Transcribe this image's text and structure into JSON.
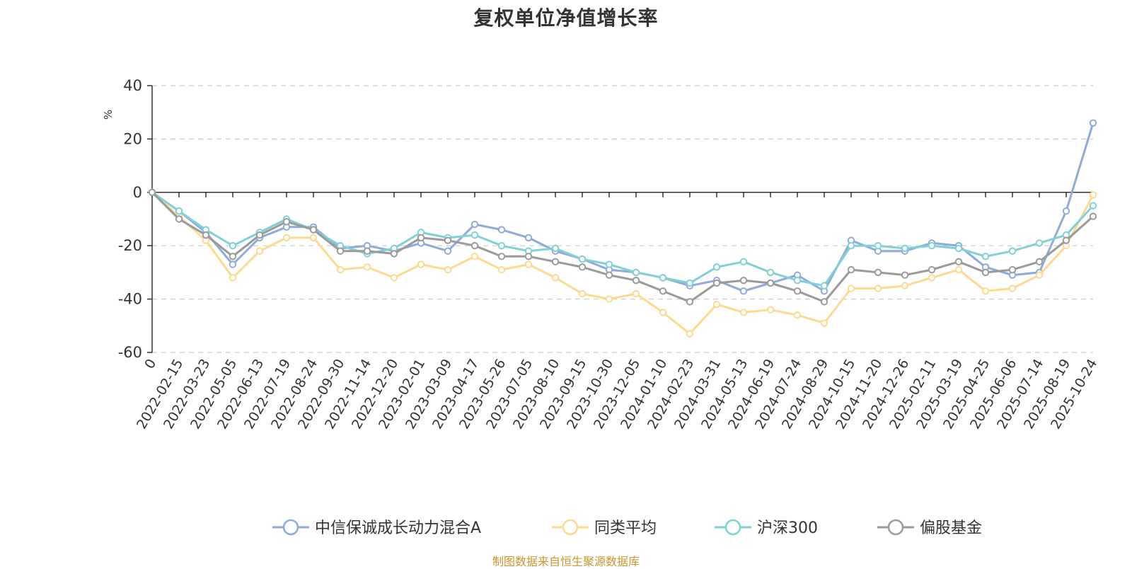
{
  "chart_data": {
    "type": "line",
    "title": "复权单位净值增长率",
    "ylabel": "%",
    "xlabel": "",
    "ylim": [
      -60,
      40
    ],
    "y_ticks": [
      40,
      20,
      0,
      -20,
      -40,
      -60
    ],
    "grid": true,
    "legend_position": "bottom-center",
    "categories": [
      "0",
      "2022-02-15",
      "2022-03-23",
      "2022-05-05",
      "2022-06-13",
      "2022-07-19",
      "2022-08-24",
      "2022-09-30",
      "2022-11-14",
      "2022-12-20",
      "2023-02-01",
      "2023-03-09",
      "2023-04-17",
      "2023-05-26",
      "2023-07-05",
      "2023-08-10",
      "2023-09-15",
      "2023-10-30",
      "2023-12-05",
      "2024-01-10",
      "2024-02-23",
      "2024-03-31",
      "2024-05-13",
      "2024-06-19",
      "2024-07-24",
      "2024-08-29",
      "2024-10-15",
      "2024-11-20",
      "2024-12-26",
      "2025-02-11",
      "2025-03-19",
      "2025-04-25",
      "2025-06-06",
      "2025-07-14",
      "2025-08-19",
      "2025-10-24"
    ],
    "series": [
      {
        "name": "中信保诚成长动力混合A",
        "color": "#8eaadb",
        "values": [
          0,
          -7,
          -15,
          -27,
          -17,
          -13,
          -13,
          -21,
          -20,
          -22,
          -19,
          -22,
          -12,
          -14,
          -17,
          -22,
          -25,
          -29,
          -30,
          -32,
          -35,
          -33,
          -37,
          -34,
          -31,
          -37,
          -18,
          -22,
          -22,
          -19,
          -20,
          -28,
          -31,
          -30,
          -7,
          26
        ]
      },
      {
        "name": "同类平均",
        "color": "#ffd98e",
        "values": [
          0,
          -9,
          -18,
          -32,
          -22,
          -17,
          -17,
          -29,
          -28,
          -32,
          -27,
          -29,
          -24,
          -29,
          -27,
          -32,
          -38,
          -40,
          -38,
          -45,
          -53,
          -42,
          -45,
          -44,
          -46,
          -49,
          -36,
          -36,
          -35,
          -32,
          -29,
          -37,
          -36,
          -31,
          -20,
          -1
        ]
      },
      {
        "name": "沪深300",
        "color": "#7fd1d6",
        "values": [
          0,
          -7,
          -14,
          -20,
          -15,
          -10,
          -14,
          -20,
          -23,
          -21,
          -15,
          -17,
          -16,
          -20,
          -22,
          -21,
          -25,
          -27,
          -30,
          -32,
          -34,
          -28,
          -26,
          -30,
          -33,
          -35,
          -20,
          -20,
          -21,
          -20,
          -21,
          -24,
          -22,
          -19,
          -16,
          -5
        ]
      },
      {
        "name": "偏股基金",
        "color": "#9a9a9a",
        "values": [
          0,
          -10,
          -16,
          -24,
          -16,
          -11,
          -14,
          -22,
          -22,
          -23,
          -17,
          -18,
          -20,
          -24,
          -24,
          -26,
          -28,
          -31,
          -33,
          -37,
          -41,
          -34,
          -33,
          -34,
          -37,
          -41,
          -29,
          -30,
          -31,
          -29,
          -26,
          -30,
          -29,
          -26,
          -18,
          -9
        ]
      }
    ],
    "source": "制图数据来自恒生聚源数据库"
  }
}
